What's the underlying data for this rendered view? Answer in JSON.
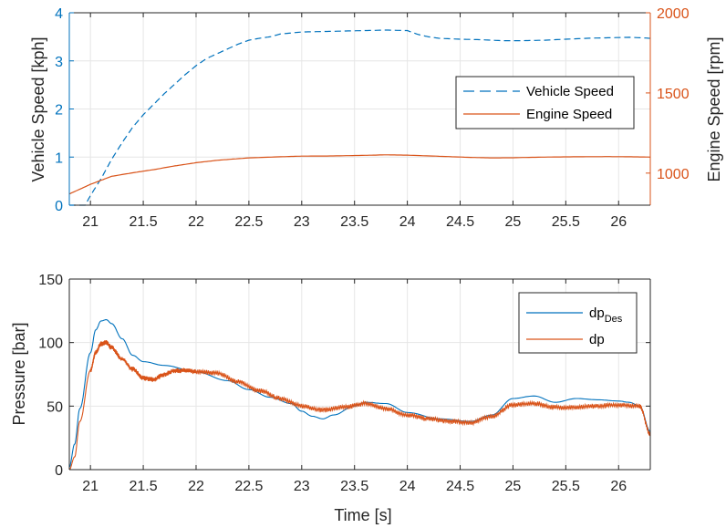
{
  "colors": {
    "blue": "#0072BD",
    "orange": "#D95319",
    "grid": "#e6e6e6",
    "axis": "#262626"
  },
  "chart_data": [
    {
      "type": "line",
      "xlim": [
        20.8,
        26.3
      ],
      "x_ticks": [
        21,
        21.5,
        22,
        22.5,
        23,
        23.5,
        24,
        24.5,
        25,
        25.5,
        26
      ],
      "x_tick_labels": [
        "21",
        "21.5",
        "22",
        "22.5",
        "23",
        "23.5",
        "24",
        "24.5",
        "25",
        "25.5",
        "26"
      ],
      "ylabel_left": "Vehicle Speed [kph]",
      "ylim_left": [
        0,
        4
      ],
      "y_ticks_left": [
        0,
        1,
        2,
        3,
        4
      ],
      "ylabel_right": "Engine Speed [rpm]",
      "ylim_right": [
        800,
        2000
      ],
      "y_ticks_right": [
        1000,
        1500,
        2000
      ],
      "grid": true,
      "legend_position": "right",
      "series": [
        {
          "name": "Vehicle Speed",
          "axis": "left",
          "style": "dashed",
          "color": "#0072BD",
          "x": [
            20.8,
            20.95,
            21.0,
            21.1,
            21.2,
            21.3,
            21.4,
            21.5,
            21.6,
            21.7,
            21.8,
            21.9,
            22.0,
            22.1,
            22.2,
            22.3,
            22.4,
            22.5,
            22.6,
            22.7,
            22.8,
            23.0,
            23.2,
            23.4,
            23.6,
            23.8,
            24.0,
            24.1,
            24.2,
            24.3,
            24.5,
            24.7,
            24.9,
            25.1,
            25.3,
            25.5,
            25.7,
            25.9,
            26.1,
            26.3
          ],
          "y": [
            0,
            0.0,
            0.2,
            0.55,
            0.95,
            1.3,
            1.62,
            1.88,
            2.1,
            2.32,
            2.52,
            2.72,
            2.9,
            3.05,
            3.15,
            3.25,
            3.35,
            3.43,
            3.47,
            3.5,
            3.56,
            3.6,
            3.61,
            3.62,
            3.63,
            3.64,
            3.63,
            3.55,
            3.5,
            3.47,
            3.45,
            3.44,
            3.42,
            3.42,
            3.43,
            3.45,
            3.47,
            3.48,
            3.49,
            3.47
          ]
        },
        {
          "name": "Engine Speed",
          "axis": "right",
          "style": "solid",
          "color": "#D95319",
          "x": [
            20.8,
            20.9,
            21.0,
            21.1,
            21.2,
            21.4,
            21.6,
            21.8,
            22.0,
            22.2,
            22.5,
            22.8,
            23.0,
            23.3,
            23.6,
            23.8,
            24.0,
            24.3,
            24.6,
            24.8,
            25.0,
            25.3,
            25.6,
            25.9,
            26.1,
            26.3
          ],
          "y": [
            870,
            900,
            930,
            955,
            980,
            1002,
            1022,
            1045,
            1065,
            1080,
            1095,
            1102,
            1106,
            1107,
            1111,
            1114,
            1112,
            1105,
            1098,
            1095,
            1096,
            1100,
            1102,
            1103,
            1102,
            1100
          ]
        }
      ]
    },
    {
      "type": "line",
      "xlabel": "Time [s]",
      "ylabel": "Pressure [bar]",
      "xlim": [
        20.8,
        26.3
      ],
      "x_ticks": [
        21,
        21.5,
        22,
        22.5,
        23,
        23.5,
        24,
        24.5,
        25,
        25.5,
        26
      ],
      "x_tick_labels": [
        "21",
        "21.5",
        "22",
        "22.5",
        "23",
        "23.5",
        "24",
        "24.5",
        "25",
        "25.5",
        "26"
      ],
      "ylim": [
        0,
        150
      ],
      "y_ticks": [
        0,
        50,
        100,
        150
      ],
      "grid": true,
      "legend_position": "top-right",
      "series": [
        {
          "name": "dp_Des",
          "name_main": "dp",
          "name_sub": "Des",
          "color": "#0072BD",
          "style": "solid",
          "x": [
            20.8,
            20.85,
            20.9,
            21.0,
            21.05,
            21.1,
            21.15,
            21.2,
            21.3,
            21.4,
            21.5,
            21.7,
            22.0,
            22.3,
            22.5,
            22.7,
            22.9,
            23.0,
            23.1,
            23.2,
            23.3,
            23.5,
            23.6,
            23.8,
            24.0,
            24.3,
            24.6,
            24.8,
            25.0,
            25.2,
            25.4,
            25.6,
            25.8,
            26.0,
            26.1,
            26.2,
            26.3
          ],
          "y": [
            2,
            20,
            48,
            92,
            110,
            117,
            118,
            115,
            103,
            90,
            85,
            82,
            77,
            70,
            63,
            57,
            52,
            46,
            42,
            40,
            43,
            50,
            53,
            52,
            45,
            40,
            38,
            43,
            56,
            58,
            53,
            56,
            55,
            54,
            53,
            50,
            30
          ]
        },
        {
          "name": "dp",
          "color": "#D95319",
          "style": "solid",
          "noisy": true,
          "x": [
            20.8,
            20.85,
            20.9,
            21.0,
            21.05,
            21.1,
            21.15,
            21.2,
            21.3,
            21.4,
            21.5,
            21.6,
            21.7,
            21.8,
            21.9,
            22.0,
            22.2,
            22.4,
            22.6,
            22.8,
            23.0,
            23.2,
            23.4,
            23.6,
            23.8,
            24.0,
            24.2,
            24.4,
            24.6,
            24.8,
            25.0,
            25.2,
            25.4,
            25.6,
            25.8,
            26.0,
            26.2,
            26.3
          ],
          "y": [
            0,
            10,
            38,
            78,
            92,
            99,
            100,
            96,
            87,
            79,
            72,
            71,
            75,
            78,
            78,
            77,
            76,
            69,
            62,
            56,
            50,
            47,
            49,
            52,
            48,
            43,
            40,
            38,
            37,
            42,
            51,
            52,
            49,
            49,
            50,
            51,
            50,
            28
          ]
        }
      ]
    }
  ]
}
